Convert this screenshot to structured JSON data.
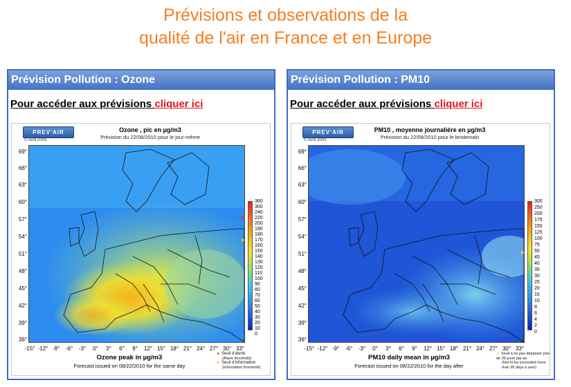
{
  "page": {
    "title_line1": "Prévisions et observations de la",
    "title_line2": "qualité de l'air en France et en Europe",
    "accent_color": "#f57e20"
  },
  "panels": [
    {
      "header": "Prévision Pollution : Ozone",
      "access_text": "Pour accéder aux prévisions",
      "access_link": "cliquer ici",
      "logo_text": "PREV'AIR",
      "logo_copy": "© Avril 2003",
      "map_title": "Ozone , pic en µg/m3",
      "map_subtitle": "Prévision du 22/08/2010 pour le jour-même",
      "bottom_title": "Ozone peak in µg/m3",
      "bottom_subtitle": "Forecast issued on 08/22/2010 for the same day",
      "lat_ticks": [
        "69°",
        "66°",
        "63°",
        "60°",
        "57°",
        "54°",
        "51°",
        "48°",
        "45°",
        "42°",
        "39°",
        "36°"
      ],
      "lon_ticks": [
        "-15°",
        "-12°",
        "-9°",
        "-6°",
        "-3°",
        "0°",
        "3°",
        "6°",
        "9°",
        "12°",
        "15°",
        "18°",
        "21°",
        "24°",
        "27°",
        "30°",
        "33°"
      ],
      "colorbar_labels": [
        "360",
        "300",
        "240",
        "220",
        "200",
        "190",
        "180",
        "170",
        "160",
        "150",
        "140",
        "130",
        "120",
        "110",
        "100",
        "90",
        "80",
        "70",
        "60",
        "50",
        "40",
        "30",
        "20",
        "10",
        "0"
      ],
      "notes": [
        {
          "text": "Seuil d'alerte",
          "sub": "(Alarm threshold)",
          "color": "#e8351c",
          "marker_value": 240
        },
        {
          "text": "Seuil d'information",
          "sub": "(Information threshold)",
          "color": "#f2b21d",
          "marker_value": 180
        }
      ]
    },
    {
      "header": "Prévision Pollution : PM10",
      "access_text": "Pour accéder aux prévisions",
      "access_link": "cliquer ici",
      "logo_text": "PREV'AIR",
      "logo_copy": "© Avril 2003",
      "map_title": "PM10 , moyenne journalière en µg/m3",
      "map_subtitle": "Prévision du 22/08/2010 pour le lendemain",
      "bottom_title": "PM10 daily mean in µg/m3",
      "bottom_subtitle": "Forecast issued on 08/22/2010 for the day after",
      "lat_ticks": [
        "69°",
        "66°",
        "63°",
        "60°",
        "57°",
        "54°",
        "51°",
        "48°",
        "45°",
        "42°",
        "39°",
        "36°"
      ],
      "lon_ticks": [
        "-15°",
        "-12°",
        "-9°",
        "-6°",
        "-3°",
        "0°",
        "3°",
        "6°",
        "9°",
        "12°",
        "15°",
        "18°",
        "21°",
        "24°",
        "27°",
        "30°",
        "33°"
      ],
      "colorbar_labels": [
        "300",
        "250",
        "200",
        "175",
        "150",
        "125",
        "100",
        "75",
        "50",
        "45",
        "40",
        "35",
        "30",
        "25",
        "20",
        "15",
        "10",
        "8",
        "6",
        "4",
        "2",
        "0"
      ],
      "notes": [
        {
          "text": "Seuil à ne pas dépasser plus de 35 jours par an",
          "sub": "(Not to be exceeded more than 35 days a year)",
          "color": "#f2d21d",
          "marker_value": 50
        }
      ]
    }
  ]
}
